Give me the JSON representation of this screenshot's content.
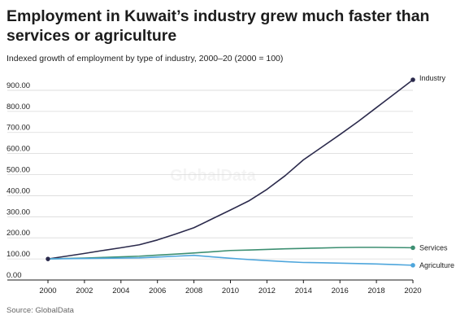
{
  "header": {
    "title": "Employment in Kuwait’s industry grew much faster than services or agriculture",
    "subtitle": "Indexed growth of employment by type of industry, 2000–20 (2000 = 100)",
    "source": "Source: GlobalData",
    "watermark": "GlobalData"
  },
  "chart_data": {
    "type": "line",
    "x": [
      2000,
      2001,
      2002,
      2003,
      2004,
      2005,
      2006,
      2007,
      2008,
      2009,
      2010,
      2011,
      2012,
      2013,
      2014,
      2015,
      2016,
      2017,
      2018,
      2019,
      2020
    ],
    "x_ticks": [
      2000,
      2002,
      2004,
      2006,
      2008,
      2010,
      2012,
      2014,
      2016,
      2018,
      2020
    ],
    "y_ticks": [
      "0.00",
      "100.00",
      "200.00",
      "300.00",
      "400.00",
      "500.00",
      "600.00",
      "700.00",
      "800.00",
      "900.00"
    ],
    "ylim": [
      0,
      950
    ],
    "grid": true,
    "series": [
      {
        "name": "Industry",
        "color": "#2b2a4c",
        "values": [
          100,
          113,
          126,
          140,
          153,
          167,
          190,
          218,
          248,
          290,
          332,
          375,
          430,
          495,
          570,
          630,
          690,
          752,
          818,
          884,
          950
        ]
      },
      {
        "name": "Services",
        "color": "#3d8f72",
        "values": [
          100,
          102,
          104,
          107,
          110,
          113,
          118,
          123,
          128,
          134,
          140,
          142,
          145,
          148,
          150,
          152,
          154,
          155,
          155,
          154,
          153
        ]
      },
      {
        "name": "Agriculture",
        "color": "#4ea6dc",
        "values": [
          100,
          101,
          102,
          103,
          104,
          105,
          109,
          113,
          117,
          110,
          103,
          97,
          92,
          87,
          83,
          82,
          80,
          78,
          76,
          73,
          70
        ]
      }
    ]
  }
}
